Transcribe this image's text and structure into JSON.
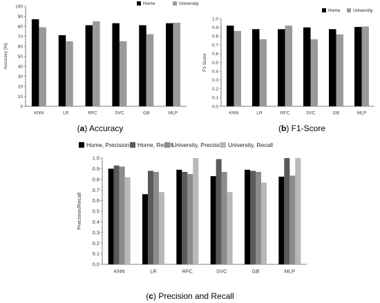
{
  "chart_data": [
    {
      "type": "bar",
      "panel_label": "(a)",
      "caption": "Accuracy",
      "ylabel": "Accuracy [%]",
      "ylim": [
        0,
        100
      ],
      "yticks": [
        "0",
        "10",
        "20",
        "30",
        "40",
        "50",
        "60",
        "70",
        "80",
        "90",
        "100"
      ],
      "grid": false,
      "legend_position": "top-right",
      "categories": [
        "KNN",
        "LR",
        "RFC",
        "SVC",
        "GB",
        "MLP"
      ],
      "series": [
        {
          "name": "Home",
          "color": "#000000",
          "values": [
            87,
            71,
            81,
            83,
            81,
            83
          ]
        },
        {
          "name": "University",
          "color": "#9a9a9a",
          "values": [
            79,
            65,
            85,
            65,
            72,
            83.5
          ]
        }
      ]
    },
    {
      "type": "bar",
      "panel_label": "(b)",
      "caption": "F1-Score",
      "ylabel": "F1-Score",
      "ylim": [
        0,
        1.0
      ],
      "yticks": [
        "0.0",
        "0.1",
        "0.2",
        "0.3",
        "0.4",
        "0.5",
        "0.6",
        "0.7",
        "0.8",
        "0.9",
        "1.0"
      ],
      "grid": false,
      "legend_position": "top-right",
      "categories": [
        "KNN",
        "LR",
        "RFC",
        "SVC",
        "GB",
        "MLP"
      ],
      "series": [
        {
          "name": "Home",
          "color": "#000000",
          "values": [
            0.92,
            0.88,
            0.88,
            0.9,
            0.88,
            0.905
          ]
        },
        {
          "name": "University",
          "color": "#9a9a9a",
          "values": [
            0.86,
            0.765,
            0.92,
            0.765,
            0.82,
            0.91
          ]
        }
      ]
    },
    {
      "type": "bar",
      "panel_label": "(c)",
      "caption": "Precision and Recall",
      "ylabel": "Precision/Recall",
      "ylim": [
        0,
        1.0
      ],
      "yticks": [
        "0.0",
        "0.1",
        "0.2",
        "0.3",
        "0.4",
        "0.5",
        "0.6",
        "0.7",
        "0.8",
        "0.9",
        "1.0"
      ],
      "grid": false,
      "legend_position": "top",
      "categories": [
        "KNN",
        "LR",
        "RFC",
        "SVC",
        "GB",
        "MLP"
      ],
      "series": [
        {
          "name": "Home, Precision",
          "color": "#000000",
          "values": [
            0.9,
            0.66,
            0.89,
            0.83,
            0.89,
            0.825
          ]
        },
        {
          "name": "Home, Recall",
          "color": "#5a5a5a",
          "values": [
            0.93,
            0.88,
            0.87,
            0.99,
            0.88,
            1.0
          ]
        },
        {
          "name": "University, Precision",
          "color": "#8c8c8c",
          "values": [
            0.92,
            0.87,
            0.85,
            0.87,
            0.87,
            0.835
          ]
        },
        {
          "name": "University, Recall",
          "color": "#b8b8b8",
          "values": [
            0.82,
            0.68,
            1.0,
            0.68,
            0.77,
            1.0
          ]
        }
      ]
    }
  ]
}
